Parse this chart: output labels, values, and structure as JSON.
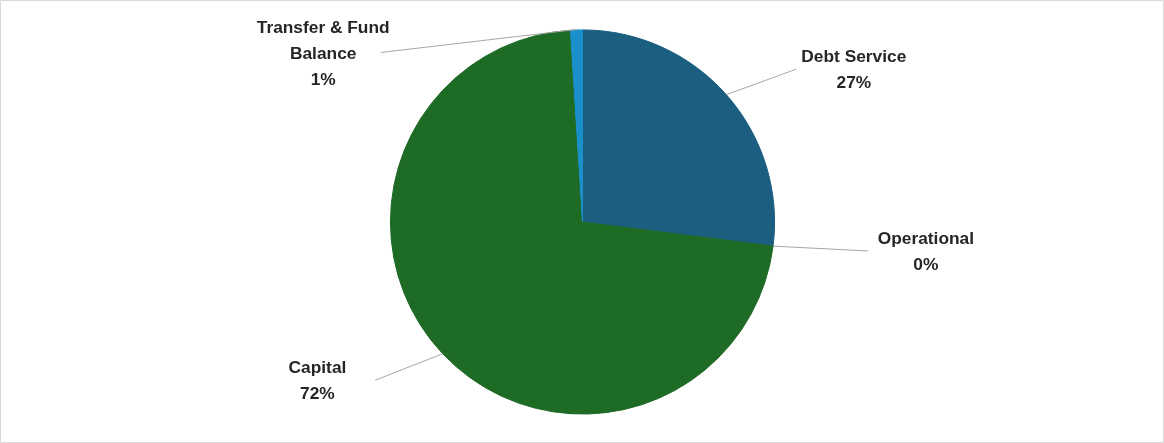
{
  "chart_data": {
    "type": "pie",
    "categories": [
      "Debt Service",
      "Operational",
      "Capital",
      "Transfer & Fund Balance"
    ],
    "values": [
      27,
      0,
      72,
      1
    ],
    "colors": [
      "#1b5e80",
      "#2f7fa8",
      "#1e6b26",
      "#1a8fc9"
    ],
    "value_labels": [
      "27%",
      "0%",
      "72%",
      "1%"
    ]
  }
}
